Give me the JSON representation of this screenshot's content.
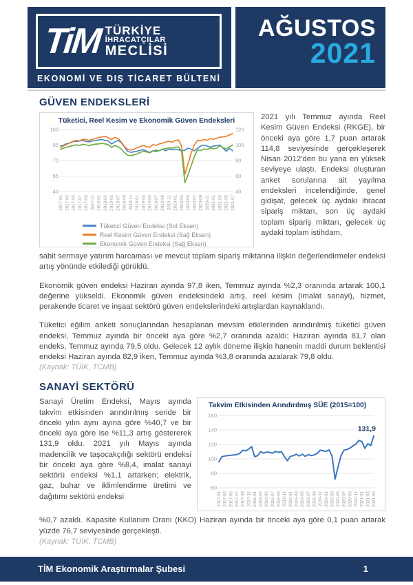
{
  "header": {
    "logo": {
      "tim": "TiM",
      "line1": "TÜRKİYE",
      "line2": "İHRACATÇILAR",
      "line3": "MECLİSİ"
    },
    "bulletin_title": "EKONOMİ VE DIŞ TİCARET BÜLTENİ",
    "month": "AĞUSTOS",
    "year": "2021"
  },
  "colors": {
    "navy": "#1e3a64",
    "cyan": "#29abe2",
    "consumer_blue": "#4e87c8",
    "real_sector_orange": "#e8802f",
    "economic_green": "#6fae44",
    "sue_blue": "#3b76bc"
  },
  "sections": {
    "guven": {
      "heading": "GÜVEN ENDEKSLERİ",
      "para_right": "2021 yılı Temmuz ayında Reel Kesim Güven Endeksi (RKGE), bir önceki aya göre 1,7 puan artarak 114,8 seviyesinde gerçekleşerek Nisan 2012'den bu yana en yüksek seviyeye ulaştı. Endeksi oluşturan anket sorularına ait yayılma endeksleri incelendiğinde, genel gidişat, gelecek üç aydaki ihracat sipariş miktarı, son üç aydaki toplam sipariş miktarı, gelecek üç aydaki toplam istihdam,",
      "para_cont": "sabit sermaye yatırım harcaması ve mevcut toplam sipariş miktarına ilişkin değerlendirmeler endeksi artış yönünde etkilediği görüldü.",
      "para2": "Ekonomik güven endeksi Haziran ayında 97,8 iken, Temmuz ayında %2,3 oranında artarak 100,1 değerine yükseldi. Ekonomik güven endeksindeki artış, reel kesim (imalat sanayi), hizmet, perakende ticaret ve inşaat sektörü güven endekslerindeki artışlardan kaynaklandı.",
      "para3": "Tüketici eğilim anketi sonuçlarından hesaplanan mevsim etkilerinden arındırılmış tüketici güven endeksi, Temmuz ayında bir önceki aya göre %2,7 oranında azaldı; Haziran ayında 81,7 olan endeks, Temmuz ayında 79,5 oldu. Gelecek 12 aylık döneme ilişkin hanenin maddi durum beklentisi endeksi Haziran ayında 82,9 iken, Temmuz ayında %3,8 oranında azalarak 79,8 oldu.",
      "source": "(Kaynak: TÜİK, TCMB)"
    },
    "sanayi": {
      "heading": "SANAYİ SEKTÖRÜ",
      "para_left": "Sanayi Üretim Endeksi, Mayıs ayında takvim etkisinden arındırılmış seride bir önceki yılın aynı ayına göre %40,7 ve bir önceki aya göre ise %11,3 artış göstererek 131,9 oldu. 2021 yılı Mayıs ayında madencilik ve taşocakçılığı sektörü endeksi bir önceki aya göre %8,4, imalat sanayi sektörü endeksi %1,1 artarken; elektrik, gaz, buhar ve iklimlendirme üretimi ve dağıtımı sektörü endeksi",
      "para_cont": "%0,7 azaldı. Kapasite Kullanım Oranı (KKO) Haziran ayında bir önceki aya göre 0,1 puan artarak yüzde 76,7 seviyesinde gerçekleşti.",
      "source": "(Kaynak: TÜİK, TCMB)"
    }
  },
  "footer": {
    "left": "TİM Ekonomik Araştırmalar Şubesi",
    "page": "1"
  },
  "chart_data": [
    {
      "type": "line",
      "title": "Tüketici, Reel Kesim ve Ekonomik Güven Endeksleri",
      "x": [
        "2017-01",
        "2017-02",
        "2017-03",
        "2017-04",
        "2017-05",
        "2017-06",
        "2017-07",
        "2017-08",
        "2017-09",
        "2017-10",
        "2017-11",
        "2017-12",
        "2018-01",
        "2018-02",
        "2018-03",
        "2018-04",
        "2018-05",
        "2018-06",
        "2018-07",
        "2018-08",
        "2018-09",
        "2018-10",
        "2018-11",
        "2018-12",
        "2019-01",
        "2019-02",
        "2019-03",
        "2019-04",
        "2019-05",
        "2019-06",
        "2019-07",
        "2019-08",
        "2019-09",
        "2019-10",
        "2019-11",
        "2019-12",
        "2020-01",
        "2020-02",
        "2020-03",
        "2020-04",
        "2020-05",
        "2020-06",
        "2020-07",
        "2020-08",
        "2020-09",
        "2020-10",
        "2020-11",
        "2020-12",
        "2021-01",
        "2021-02",
        "2021-03",
        "2021-04",
        "2021-05",
        "2021-06",
        "2021-07"
      ],
      "x_tick_every": 2,
      "left_axis": {
        "min": 40,
        "max": 100,
        "ticks": [
          100,
          85,
          70,
          55,
          40
        ]
      },
      "right_axis": {
        "min": 40,
        "max": 120,
        "ticks": [
          120,
          100,
          80,
          60,
          40
        ]
      },
      "grid": true,
      "legend_position": "bottom",
      "series": [
        {
          "name": "Tüketici Güven Endeksi (Sol Eksen)",
          "axis": "left",
          "color": "#4e87c8",
          "values": [
            84,
            85,
            86.5,
            87,
            88.5,
            88.5,
            89,
            89.5,
            88.5,
            88,
            89,
            89.5,
            90,
            90.5,
            89.5,
            89,
            86,
            88,
            89.5,
            87.5,
            83.5,
            79,
            78,
            78.5,
            79,
            80,
            80.5,
            79,
            78,
            79.5,
            80,
            79.5,
            81,
            79.5,
            81,
            80.5,
            81,
            80.5,
            79.5,
            80,
            82,
            81,
            79.5,
            82,
            84,
            85,
            84,
            83,
            84,
            84.5,
            85,
            82,
            79,
            81.7,
            79.5
          ]
        },
        {
          "name": "Reel Kesim Güven Endeksi (Sağ Eksen)",
          "axis": "right",
          "color": "#e8802f",
          "values": [
            97,
            99,
            101,
            103,
            105,
            106,
            105.5,
            107.5,
            107,
            106,
            107.5,
            108.5,
            110,
            110.5,
            111,
            109.5,
            107,
            110,
            108.5,
            104,
            98.5,
            94.5,
            93.5,
            94.5,
            96.5,
            98,
            99.5,
            98,
            97,
            100.5,
            99.5,
            101.5,
            102.5,
            104,
            105,
            103.5,
            106,
            106.5,
            98.5,
            62.3,
            76,
            89.8,
            100.2,
            106.2,
            105.3,
            107.2,
            106.1,
            108.2,
            107.5,
            108.7,
            110.2,
            110.5,
            111.3,
            113.1,
            114.8
          ]
        },
        {
          "name": "Ekonomik Güven Endeksi (Sağ Eksen)",
          "axis": "right",
          "color": "#6fae44",
          "values": [
            94.5,
            96,
            97.5,
            98.5,
            99.5,
            100.3,
            99.5,
            101,
            100.2,
            99.3,
            100.5,
            101.2,
            101.5,
            102.3,
            101.5,
            100.4,
            97,
            99.3,
            98,
            95,
            90.4,
            87,
            86.2,
            87.3,
            88.5,
            90.5,
            92,
            91,
            90,
            92.5,
            91.5,
            93,
            94.5,
            95.5,
            96.5,
            96,
            97.2,
            97.5,
            91.8,
            51.3,
            61.7,
            73.5,
            85.4,
            94,
            92.8,
            95,
            94.2,
            96.2,
            95.2,
            96,
            98.9,
            96.5,
            95,
            97.8,
            100.1
          ]
        }
      ]
    },
    {
      "type": "line",
      "title": "Takvim Etkisinden Arındırılmış SÜE (2015=100)",
      "x": [
        "2017-01",
        "2017-02",
        "2017-03",
        "2017-04",
        "2017-05",
        "2017-06",
        "2017-07",
        "2017-08",
        "2017-09",
        "2017-10",
        "2017-11",
        "2017-12",
        "2018-01",
        "2018-02",
        "2018-03",
        "2018-04",
        "2018-05",
        "2018-06",
        "2018-07",
        "2018-08",
        "2018-09",
        "2018-10",
        "2018-11",
        "2018-12",
        "2019-01",
        "2019-02",
        "2019-03",
        "2019-04",
        "2019-05",
        "2019-06",
        "2019-07",
        "2019-08",
        "2019-09",
        "2019-10",
        "2019-11",
        "2019-12",
        "2020-01",
        "2020-02",
        "2020-03",
        "2020-04",
        "2020-05",
        "2020-06",
        "2020-07",
        "2020-08",
        "2020-09",
        "2020-10",
        "2020-11",
        "2020-12",
        "2021-01",
        "2021-02",
        "2021-03",
        "2021-04",
        "2021-05"
      ],
      "x_tick_every": 2,
      "left_axis": {
        "min": 60,
        "max": 160,
        "ticks": [
          160,
          140,
          120,
          100,
          80,
          60
        ]
      },
      "grid": true,
      "end_label": "131,9",
      "series": [
        {
          "name": "Takvim Etkisinden Arındırılmış SÜE",
          "axis": "left",
          "color": "#3b76bc",
          "values": [
            96,
            103,
            104,
            104.5,
            105,
            105.5,
            106,
            107.5,
            112,
            111,
            113.5,
            117,
            103,
            104.5,
            110,
            108,
            109.5,
            109,
            108,
            110.5,
            109,
            110,
            103,
            97.5,
            103.5,
            104.5,
            106.5,
            104,
            106.5,
            103.5,
            106,
            104.5,
            105.5,
            107.5,
            112,
            111,
            110.5,
            112.5,
            104,
            72,
            89,
            104.5,
            112,
            113,
            115,
            118,
            120.5,
            125.5,
            124,
            114.5,
            121,
            118.5,
            131.9
          ]
        }
      ]
    }
  ]
}
